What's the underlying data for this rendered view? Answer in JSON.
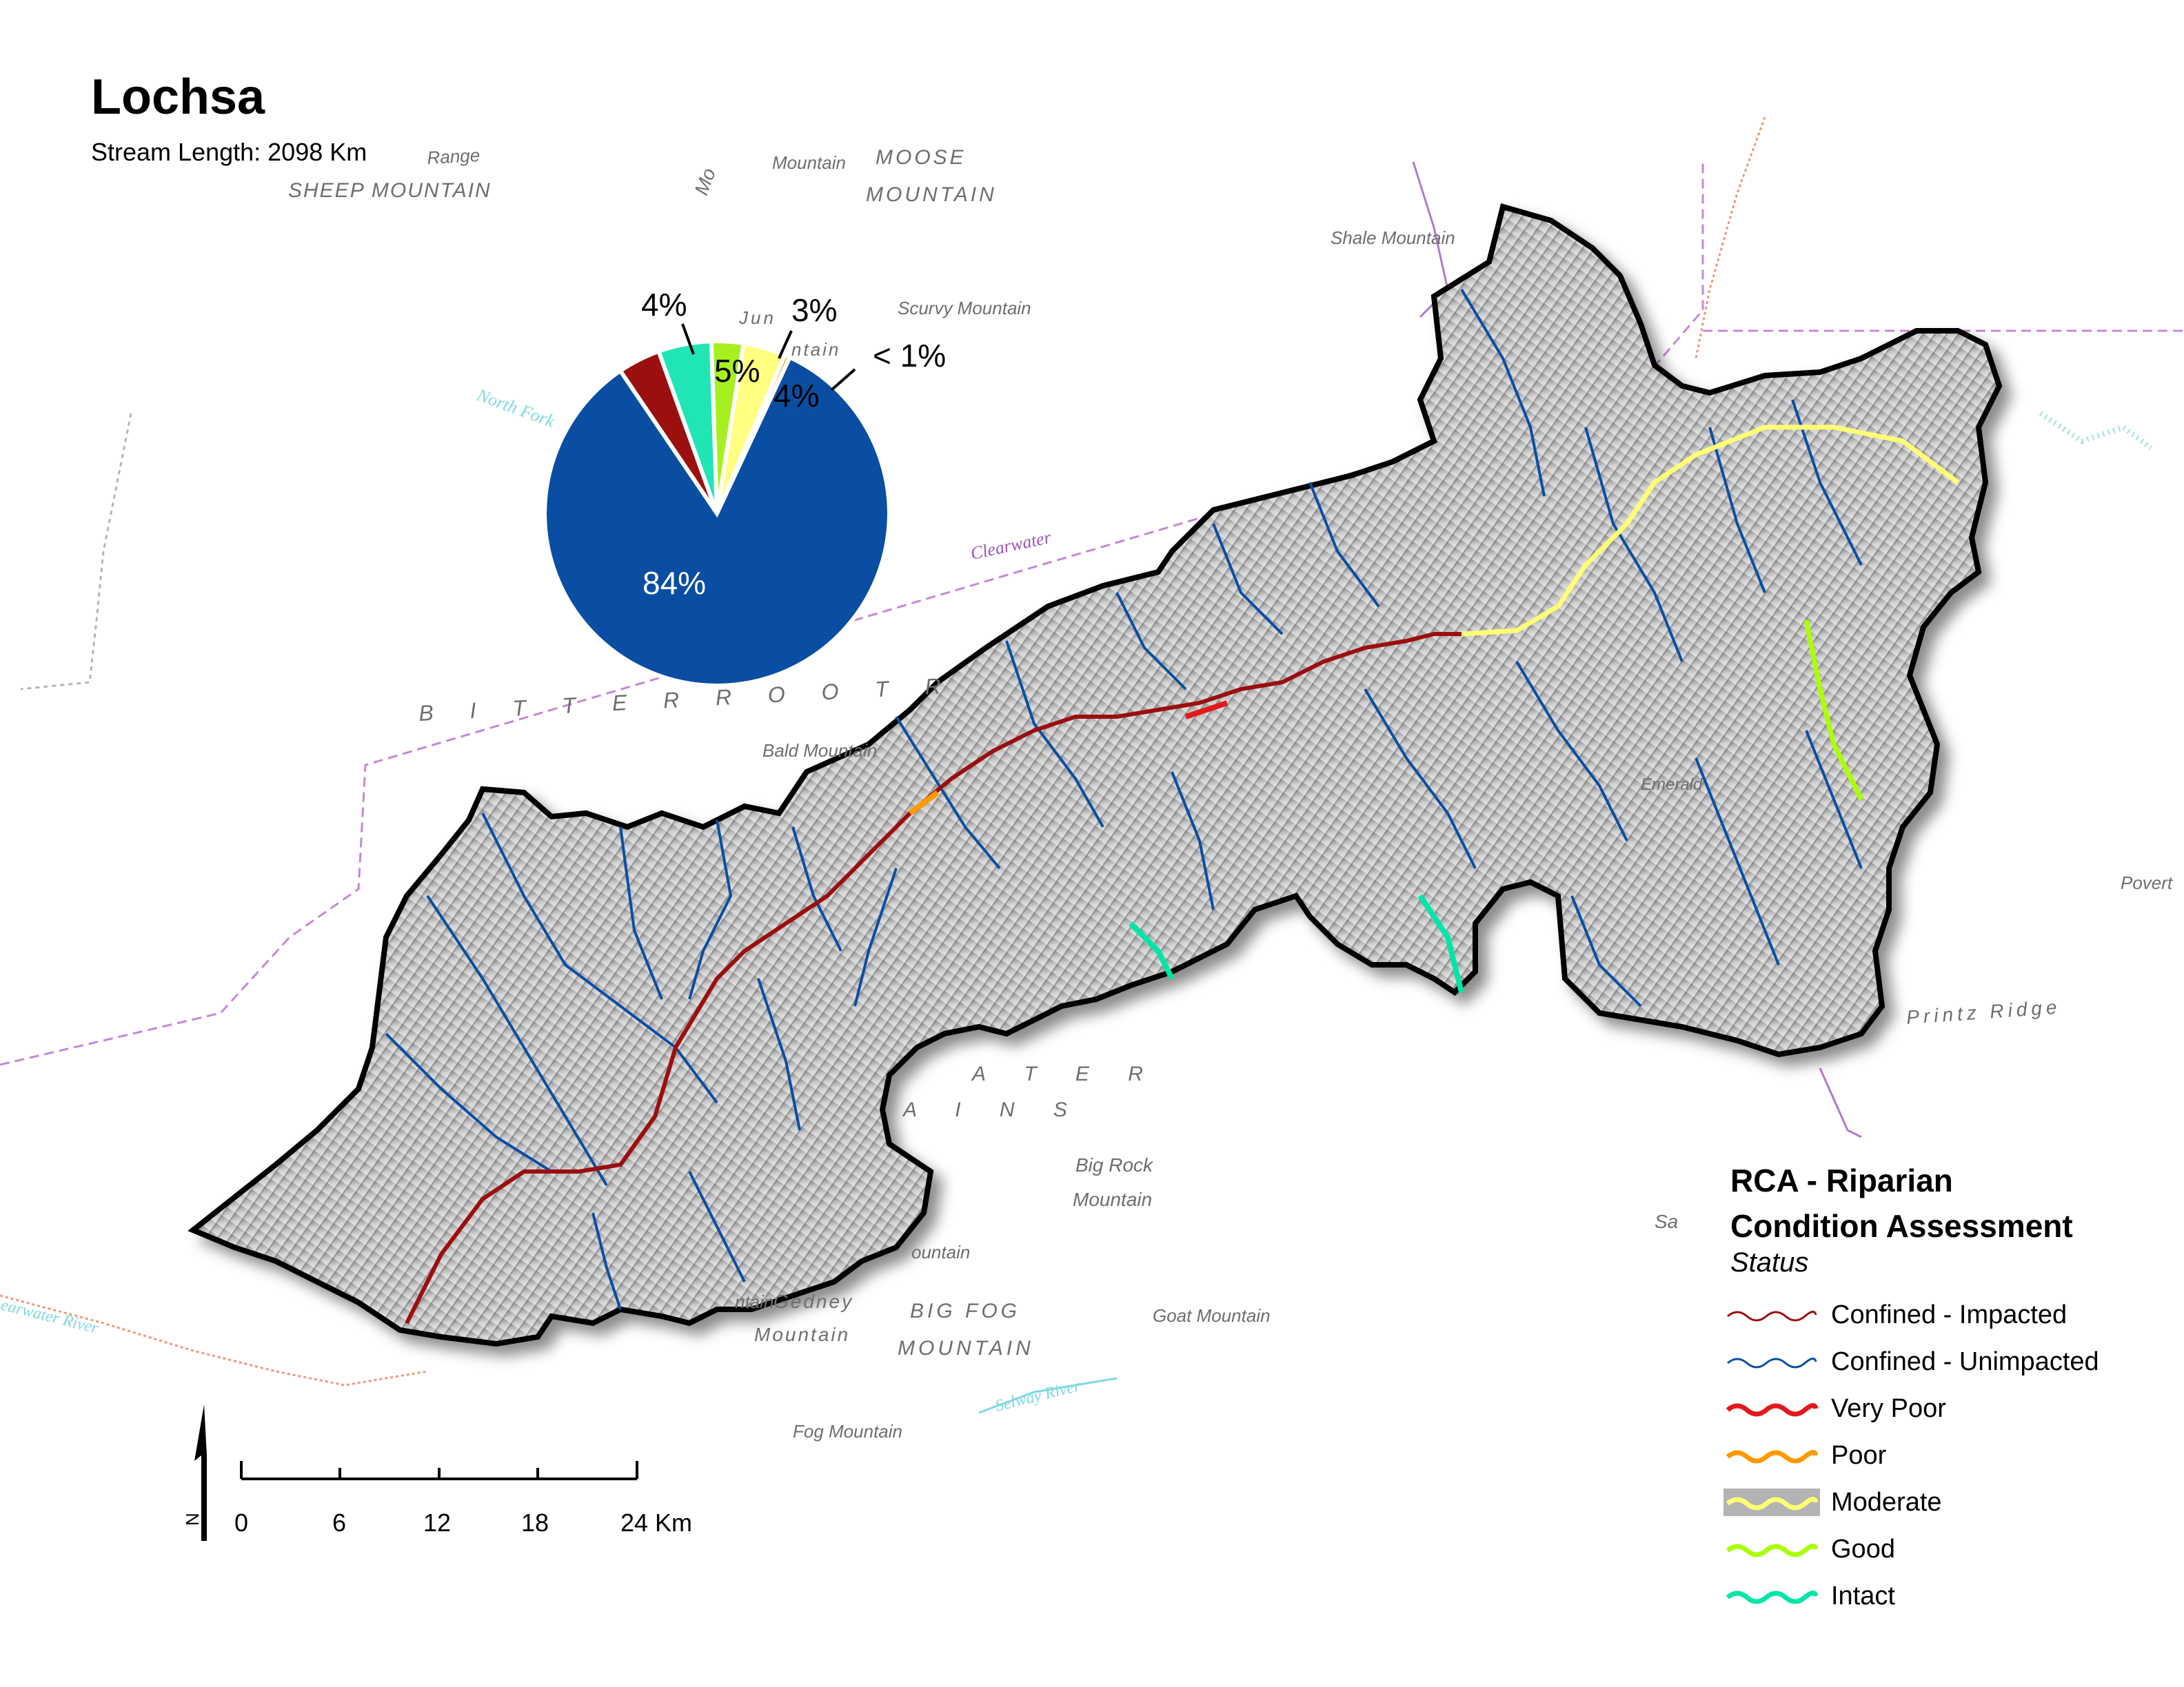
{
  "map": {
    "title": "Lochsa",
    "subtitle": "Stream Length: 2098 Km"
  },
  "pie": {
    "slices": [
      {
        "label": "84%",
        "value": 84,
        "color": "#0a4ea3"
      },
      {
        "label": "4%",
        "value": 4,
        "color": "#9b0f0f"
      },
      {
        "label": "5%",
        "value": 5,
        "color": "#1fe6b4"
      },
      {
        "label": "3%",
        "value": 3,
        "color": "#a6f020"
      },
      {
        "label": "4%",
        "value": 4,
        "color": "#ffff80"
      },
      {
        "label": "< 1%",
        "value": 0.5,
        "color": "#f5b041"
      }
    ]
  },
  "place_labels": {
    "sheep_mountain": "SHEEP MOUNTAIN",
    "range": "Range",
    "mountain_top": "Mountain",
    "moose_mountain": "MOUNTAIN",
    "moose_top": "MOOSE",
    "mo": "Mo",
    "shale_mountain": "Shale Mountain",
    "scurvy_mountain": "Scurvy Mountain",
    "jun": "Jun",
    "ntain": "ntain",
    "north_fork": "North Fork",
    "clearwater_boundary": "Clearwater",
    "bitterroot": "B I T T E R R O O T   R",
    "bald_mountain": "Bald Mountain",
    "ater": "A T E R",
    "ains": "A I N S",
    "big_rock": "Big Rock",
    "big_rock_mtn": "Mountain",
    "gedney": "Gedney",
    "gedney_mtn": "Mountain",
    "ntain_left": "ntain",
    "ountain": "ountain",
    "big_fog": "BIG FOG",
    "big_fog_mtn": "MOUNTAIN",
    "goat_mountain": "Goat Mountain",
    "fog_mountain": "Fog Mountain",
    "selway_river": "Selway River",
    "clearwater_river": "earwater River",
    "sa": "Sa",
    "pover": "Povert",
    "printz_ridge": "Printz Ridge",
    "emerald": "Emerald"
  },
  "scale_bar": {
    "ticks": [
      "0",
      "6",
      "12",
      "18",
      "24 Km"
    ],
    "north_label": "N"
  },
  "legend": {
    "title_line1": "RCA - Riparian",
    "title_line2": "Condition Assessment",
    "subtitle": "Status",
    "items": [
      {
        "label": "Confined - Impacted",
        "color": "#9b0f0f",
        "thick": false
      },
      {
        "label": "Confined - Unimpacted",
        "color": "#0a4ea3",
        "thick": false
      },
      {
        "label": "Very Poor",
        "color": "#e31a1c",
        "thick": true
      },
      {
        "label": "Poor",
        "color": "#ff9900",
        "thick": true
      },
      {
        "label": "Moderate",
        "color": "#ffff73",
        "thick": true,
        "bg": "#b3b3b3"
      },
      {
        "label": "Good",
        "color": "#aaff00",
        "thick": true
      },
      {
        "label": "Intact",
        "color": "#00e6a9",
        "thick": true
      }
    ]
  }
}
